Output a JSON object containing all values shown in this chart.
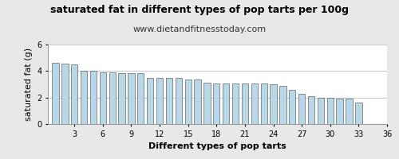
{
  "title": "saturated fat in different types of pop tarts per 100g",
  "subtitle": "www.dietandfitnesstoday.com",
  "xlabel": "Different types of pop tarts",
  "ylabel": "saturated fat (g)",
  "values": [
    4.6,
    4.55,
    4.5,
    4.0,
    4.0,
    3.9,
    3.9,
    3.85,
    3.85,
    3.85,
    3.5,
    3.5,
    3.5,
    3.5,
    3.35,
    3.35,
    3.1,
    3.05,
    3.05,
    3.05,
    3.05,
    3.05,
    3.05,
    3.0,
    2.9,
    2.6,
    2.3,
    2.1,
    2.0,
    2.0,
    1.95,
    1.9,
    1.65
  ],
  "xticks": [
    3,
    6,
    9,
    12,
    15,
    18,
    21,
    24,
    27,
    30,
    33,
    36
  ],
  "ylim": [
    0,
    6
  ],
  "yticks": [
    0,
    2,
    4,
    6
  ],
  "bar_color": "#b8d8e8",
  "bar_edge_color": "#444444",
  "plot_bg_color": "#ffffff",
  "fig_bg_color": "#e8e8e8",
  "grid_color": "#cccccc",
  "title_fontsize": 9,
  "subtitle_fontsize": 8,
  "axis_label_fontsize": 8,
  "tick_fontsize": 7
}
